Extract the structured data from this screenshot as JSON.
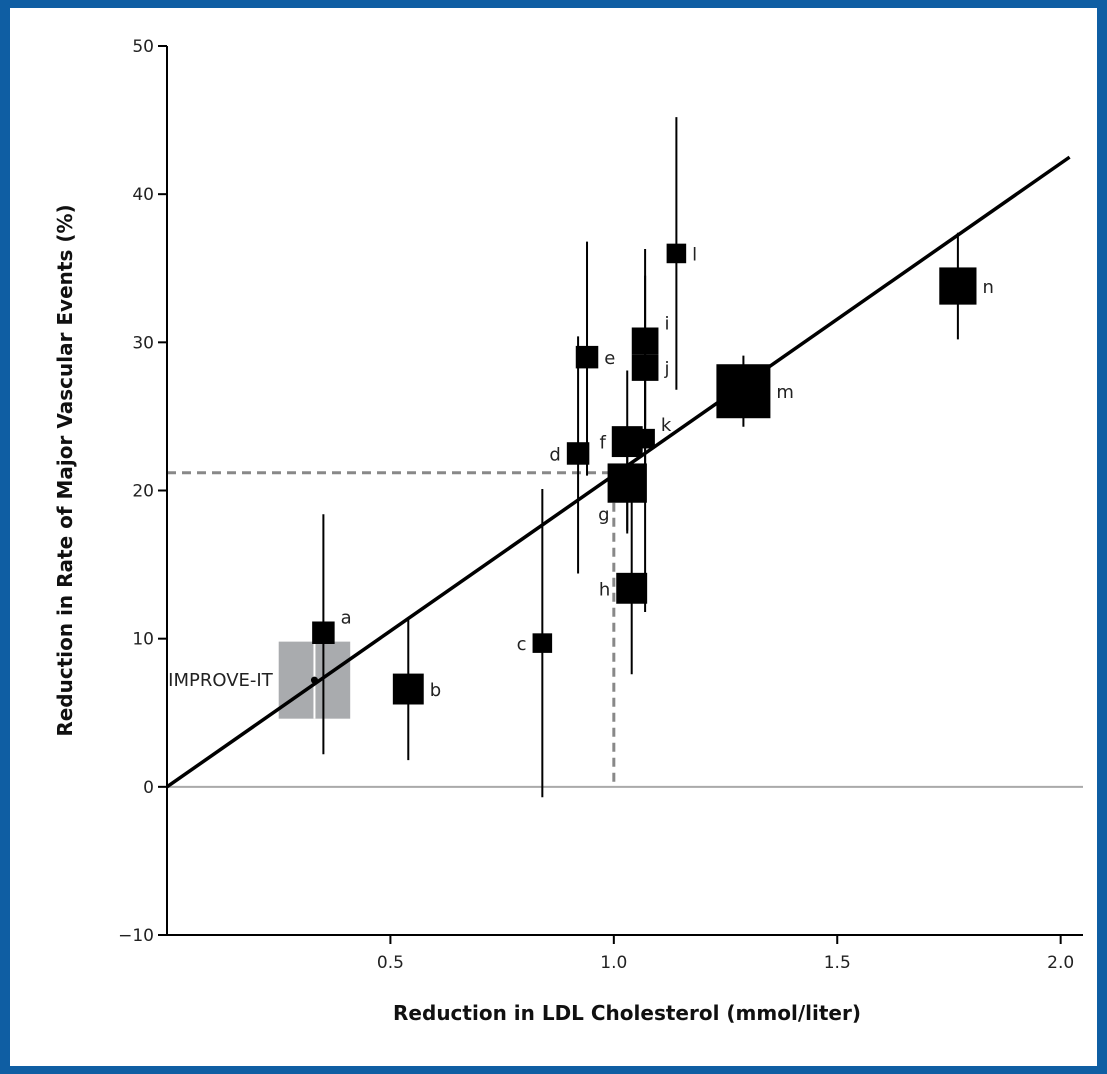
{
  "chart_data": {
    "type": "scatter",
    "xlabel": "Reduction in LDL Cholesterol (mmol/liter)",
    "ylabel": "Reduction in Rate of Major Vascular Events (%)",
    "xlim": [
      0,
      2.05
    ],
    "ylim": [
      -10,
      50
    ],
    "x_ticks": [
      {
        "value": 0.5,
        "label": "0.5"
      },
      {
        "value": 1.0,
        "label": "1.0"
      },
      {
        "value": 1.5,
        "label": "1.5"
      },
      {
        "value": 2.0,
        "label": "2.0"
      }
    ],
    "y_ticks": [
      {
        "value": -10,
        "label": "−10"
      },
      {
        "value": 0,
        "label": "0"
      },
      {
        "value": 10,
        "label": "10"
      },
      {
        "value": 20,
        "label": "20"
      },
      {
        "value": 30,
        "label": "30"
      },
      {
        "value": 40,
        "label": "40"
      },
      {
        "value": 50,
        "label": "50"
      }
    ],
    "grid": false,
    "zero_line": {
      "y": 0,
      "color": "#aaaaaa"
    },
    "regression_line": {
      "x": [
        0,
        2.02
      ],
      "y": [
        0,
        42.5
      ],
      "color": "#000000"
    },
    "reference_lines": {
      "x": 1.0,
      "y": 21.2,
      "color": "#888888",
      "style": "dashed"
    },
    "points": [
      {
        "label": "a",
        "x": 0.35,
        "y": 10.4,
        "ci": [
          2.2,
          18.4
        ],
        "size": 0.25
      },
      {
        "label": "b",
        "x": 0.54,
        "y": 6.6,
        "ci": [
          1.8,
          11.4
        ],
        "size": 0.45
      },
      {
        "label": "c",
        "x": 0.84,
        "y": 9.7,
        "ci": [
          -0.7,
          20.1
        ],
        "size": 0.18
      },
      {
        "label": "d",
        "x": 0.92,
        "y": 22.5,
        "ci": [
          14.4,
          30.4
        ],
        "size": 0.25
      },
      {
        "label": "e",
        "x": 0.94,
        "y": 29.0,
        "ci": [
          21.0,
          36.8
        ],
        "size": 0.25
      },
      {
        "label": "f",
        "x": 1.03,
        "y": 23.3,
        "ci": [
          17.3,
          28.1
        ],
        "size": 0.45
      },
      {
        "label": "g",
        "x": 1.03,
        "y": 20.5,
        "ci": [
          17.1,
          23.5
        ],
        "size": 0.65
      },
      {
        "label": "h",
        "x": 1.04,
        "y": 13.4,
        "ci": [
          7.6,
          19.4
        ],
        "size": 0.45
      },
      {
        "label": "i",
        "x": 1.07,
        "y": 30.1,
        "ci": [
          24.4,
          36.3
        ],
        "size": 0.35
      },
      {
        "label": "j",
        "x": 1.07,
        "y": 28.3,
        "ci": [
          21.8,
          34.5
        ],
        "size": 0.35
      },
      {
        "label": "k",
        "x": 1.07,
        "y": 23.5,
        "ci": [
          11.8,
          27.8
        ],
        "size": 0.18
      },
      {
        "label": "l",
        "x": 1.14,
        "y": 36.0,
        "ci": [
          26.8,
          45.2
        ],
        "size": 0.18
      },
      {
        "label": "m",
        "x": 1.29,
        "y": 26.7,
        "ci": [
          24.3,
          29.1
        ],
        "size": 1.0
      },
      {
        "label": "n",
        "x": 1.77,
        "y": 33.8,
        "ci": [
          30.2,
          37.4
        ],
        "size": 0.6
      }
    ],
    "highlight": {
      "label": "IMPROVE-IT",
      "x": 0.33,
      "y": 7.2,
      "box_x": [
        0.25,
        0.41
      ],
      "box_y": [
        4.6,
        9.8
      ],
      "color": "#a9abae"
    }
  }
}
